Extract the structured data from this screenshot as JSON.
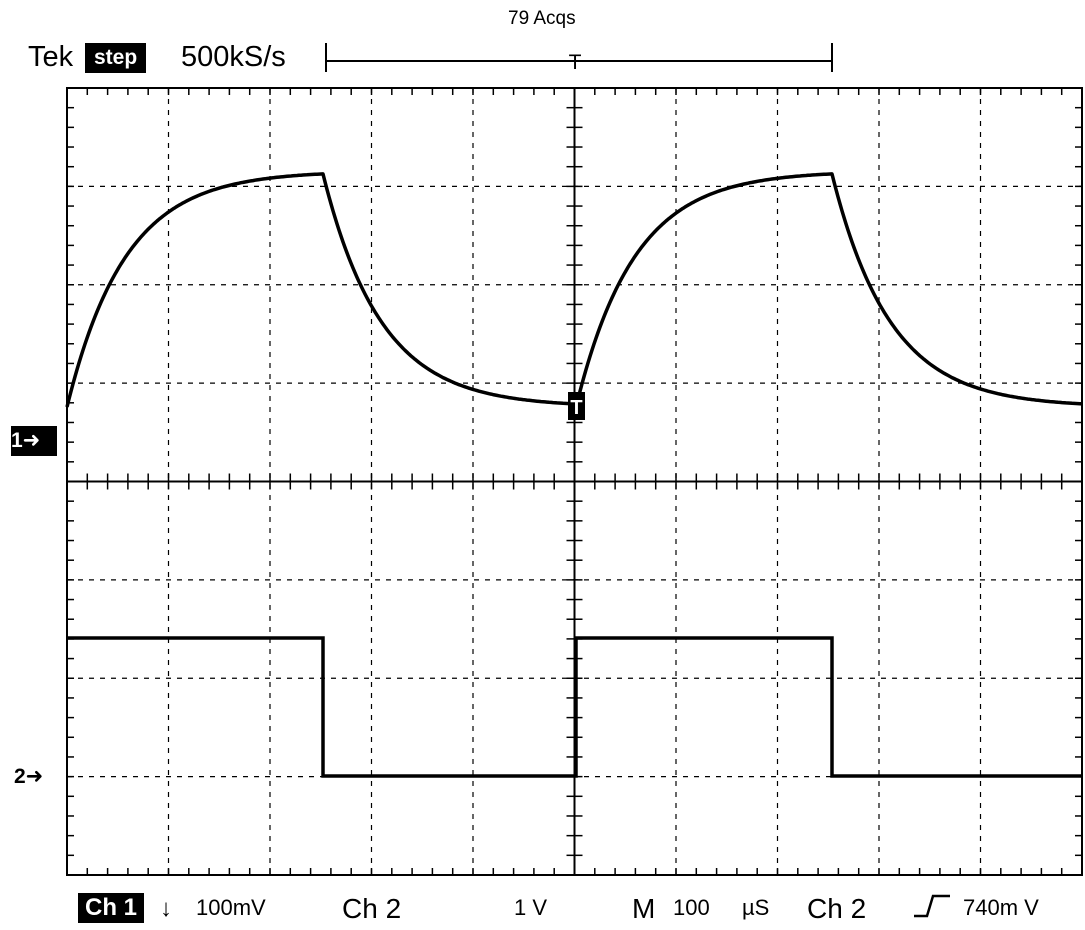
{
  "header": {
    "acquisitions": "79 Acqs",
    "brand": "Tek",
    "mode": "step",
    "sample_rate": "500kS/s",
    "trigger_marker": "T"
  },
  "markers": {
    "ch1": "1➜",
    "ch2": "2➜",
    "trigger_point": "T"
  },
  "status_bar": {
    "ch1_label": "Ch 1",
    "ch1_coupling_icon": "↓",
    "ch1_scale": "100mV",
    "ch2_label": "Ch 2",
    "ch2_scale": "1 V",
    "timebase_label": "M",
    "timebase_value": "100",
    "timebase_unit": "µS",
    "trigger_source": "Ch 2",
    "trigger_slope_icon": "rising-edge-icon",
    "trigger_level": "740m V"
  },
  "colors": {
    "background": "#ffffff",
    "trace": "#000000",
    "graticule": "#000000"
  }
}
